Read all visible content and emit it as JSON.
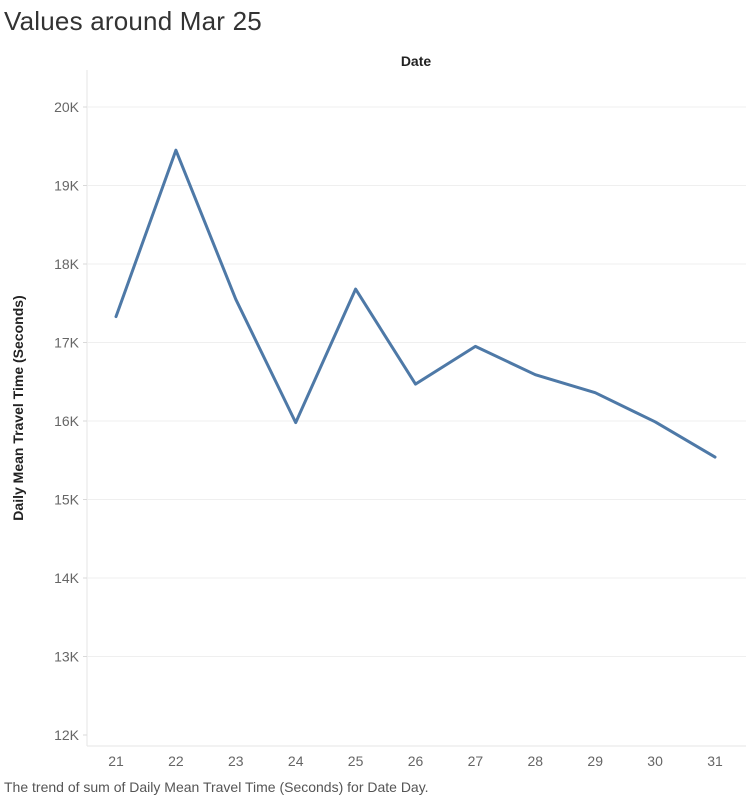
{
  "title": "Values around Mar 25",
  "caption": "The trend of sum of Daily Mean Travel Time (Seconds) for Date Day.",
  "chart_data": {
    "type": "line",
    "title": "Values around Mar 25",
    "xlabel": "Date",
    "ylabel": "Daily Mean Travel Time (Seconds)",
    "x": [
      "21",
      "22",
      "23",
      "24",
      "25",
      "26",
      "27",
      "28",
      "29",
      "30",
      "31"
    ],
    "series": [
      {
        "values": [
          17330,
          19450,
          17550,
          15980,
          17680,
          16470,
          16950,
          16590,
          16360,
          15990,
          15540
        ]
      }
    ],
    "ylim": [
      12000,
      20000
    ],
    "yticks": [
      12000,
      13000,
      14000,
      15000,
      16000,
      17000,
      18000,
      19000,
      20000
    ],
    "ytick_labels": [
      "12K",
      "13K",
      "14K",
      "15K",
      "16K",
      "17K",
      "18K",
      "19K",
      "20K"
    ],
    "grid": true,
    "line_color": "#4e79a7"
  }
}
